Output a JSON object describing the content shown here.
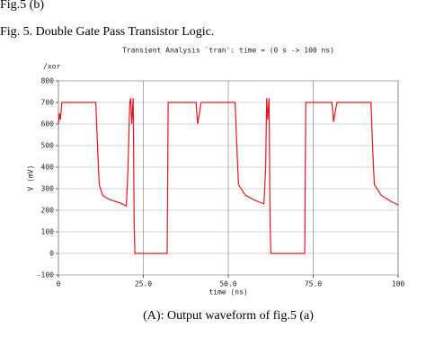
{
  "header": {
    "fig_ref": "Fig.5 (b)",
    "figure_title": "Fig. 5. Double Gate Pass Transistor Logic."
  },
  "chart_data": {
    "type": "line",
    "title": "Transient Analysis `tran': time = (0 s -> 100 ns)",
    "x_label": "time (ns)",
    "y_label": "V (mV)",
    "x": [
      0,
      0.3,
      0.6,
      1,
      1.5,
      11,
      11.5,
      12,
      13,
      15,
      18,
      20,
      20.5,
      21,
      21.3,
      21.6,
      22,
      22.3,
      22.5,
      32,
      32.3,
      40.5,
      41,
      41.5,
      42,
      52,
      52.5,
      53,
      55,
      58,
      60.5,
      61,
      61.3,
      61.6,
      62,
      62.3,
      62.5,
      72.5,
      72.8,
      80.5,
      81,
      81.5,
      82,
      92,
      92.5,
      93,
      95,
      98,
      100
    ],
    "series": [
      {
        "name": "/xor",
        "color": "#e8141c",
        "values": [
          600,
          650,
          620,
          700,
          700,
          700,
          500,
          320,
          270,
          250,
          235,
          220,
          400,
          700,
          720,
          600,
          720,
          150,
          0,
          0,
          700,
          700,
          600,
          650,
          700,
          700,
          500,
          320,
          270,
          245,
          230,
          400,
          720,
          620,
          720,
          150,
          0,
          0,
          700,
          700,
          610,
          660,
          700,
          700,
          480,
          320,
          270,
          240,
          225
        ]
      }
    ],
    "xlim": [
      0,
      100
    ],
    "ylim": [
      -100,
      800
    ],
    "xticks": [
      0,
      {
        "value": 25,
        "label": "25.0"
      },
      {
        "value": 50,
        "label": "50.0"
      },
      {
        "value": 75,
        "label": "75.0"
      },
      100
    ],
    "yticks": [
      -100,
      0,
      100,
      200,
      300,
      400,
      500,
      600,
      700,
      800
    ],
    "grid": true
  },
  "caption": "(A): Output waveform of fig.5 (a)"
}
